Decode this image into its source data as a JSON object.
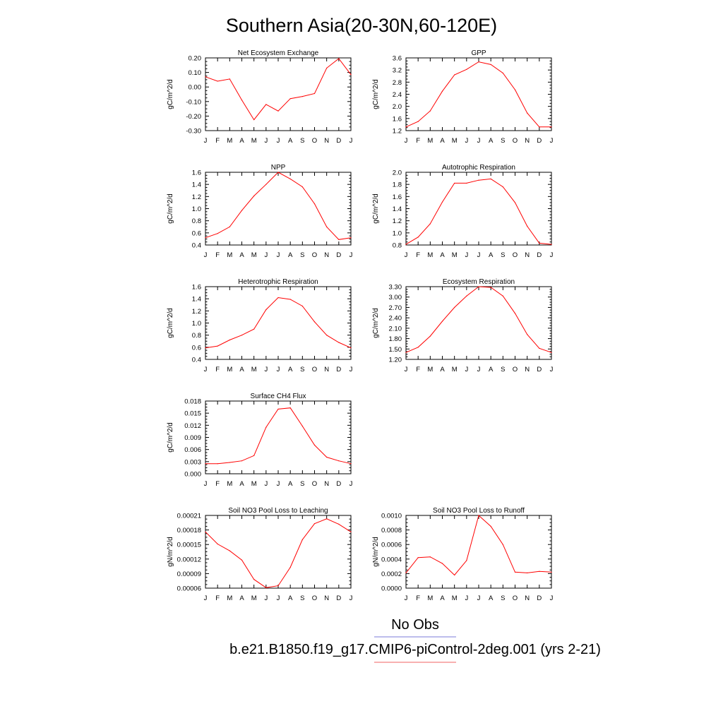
{
  "title": "Southern Asia(20-30N,60-120E)",
  "legend": {
    "entries": [
      {
        "label": "No Obs",
        "color": "#7b7bd8"
      },
      {
        "label": "b.e21.B1850.f19_g17.CMIP6-piControl-2deg.001 (yrs 2-21)",
        "color": "#f26060"
      }
    ]
  },
  "colors": {
    "series": "#ff0000",
    "axis": "#000000"
  },
  "chart_data": [
    {
      "type": "line",
      "title": "Net Ecosystem Exchange",
      "ylabel": "gC/m^2/d",
      "categories": [
        "J",
        "F",
        "M",
        "A",
        "M",
        "J",
        "J",
        "A",
        "S",
        "O",
        "N",
        "D",
        "J"
      ],
      "ylim": [
        -0.3,
        0.2
      ],
      "yticks": [
        "-0.30",
        "-0.20",
        "-0.10",
        "0.00",
        "0.10",
        "0.20"
      ],
      "series": [
        {
          "values": [
            0.07,
            0.04,
            0.055,
            -0.09,
            -0.225,
            -0.12,
            -0.165,
            -0.08,
            -0.065,
            -0.045,
            0.13,
            0.195,
            0.085
          ]
        }
      ]
    },
    {
      "type": "line",
      "title": "GPP",
      "ylabel": "gC/m^2/d",
      "categories": [
        "J",
        "F",
        "M",
        "A",
        "M",
        "J",
        "J",
        "A",
        "S",
        "O",
        "N",
        "D",
        "J"
      ],
      "ylim": [
        1.2,
        3.6
      ],
      "yticks": [
        "1.2",
        "1.6",
        "2.0",
        "2.4",
        "2.8",
        "3.2",
        "3.6"
      ],
      "series": [
        {
          "values": [
            1.32,
            1.5,
            1.85,
            2.5,
            3.04,
            3.22,
            3.47,
            3.38,
            3.1,
            2.55,
            1.78,
            1.32,
            1.32
          ]
        }
      ]
    },
    {
      "type": "line",
      "title": "NPP",
      "ylabel": "gC/m^2/d",
      "categories": [
        "J",
        "F",
        "M",
        "A",
        "M",
        "J",
        "J",
        "A",
        "S",
        "O",
        "N",
        "D",
        "J"
      ],
      "ylim": [
        0.4,
        1.6
      ],
      "yticks": [
        "0.4",
        "0.6",
        "0.8",
        "1.0",
        "1.2",
        "1.4",
        "1.6"
      ],
      "series": [
        {
          "values": [
            0.52,
            0.59,
            0.7,
            0.97,
            1.21,
            1.4,
            1.6,
            1.49,
            1.36,
            1.08,
            0.7,
            0.49,
            0.52
          ]
        }
      ]
    },
    {
      "type": "line",
      "title": "Autotrophic Respiration",
      "ylabel": "gC/m^2/d",
      "categories": [
        "J",
        "F",
        "M",
        "A",
        "M",
        "J",
        "J",
        "A",
        "S",
        "O",
        "N",
        "D",
        "J"
      ],
      "ylim": [
        0.8,
        2.0
      ],
      "yticks": [
        "0.8",
        "1.0",
        "1.2",
        "1.4",
        "1.6",
        "1.8",
        "2.0"
      ],
      "series": [
        {
          "values": [
            0.81,
            0.93,
            1.15,
            1.51,
            1.82,
            1.82,
            1.87,
            1.89,
            1.76,
            1.5,
            1.11,
            0.83,
            0.81
          ]
        }
      ]
    },
    {
      "type": "line",
      "title": "Heterotrophic Respiration",
      "ylabel": "gC/m^2/d",
      "categories": [
        "J",
        "F",
        "M",
        "A",
        "M",
        "J",
        "J",
        "A",
        "S",
        "O",
        "N",
        "D",
        "J"
      ],
      "ylim": [
        0.4,
        1.6
      ],
      "yticks": [
        "0.4",
        "0.6",
        "0.8",
        "1.0",
        "1.2",
        "1.4",
        "1.6"
      ],
      "series": [
        {
          "values": [
            0.59,
            0.62,
            0.72,
            0.8,
            0.9,
            1.22,
            1.42,
            1.39,
            1.28,
            1.02,
            0.8,
            0.68,
            0.59
          ]
        }
      ]
    },
    {
      "type": "line",
      "title": "Ecosystem Respiration",
      "ylabel": "gC/m^2/d",
      "categories": [
        "J",
        "F",
        "M",
        "A",
        "M",
        "J",
        "J",
        "A",
        "S",
        "O",
        "N",
        "D",
        "J"
      ],
      "ylim": [
        1.2,
        3.3
      ],
      "yticks": [
        "1.20",
        "1.50",
        "1.80",
        "2.10",
        "2.40",
        "2.70",
        "3.00",
        "3.30"
      ],
      "series": [
        {
          "values": [
            1.4,
            1.55,
            1.87,
            2.3,
            2.7,
            3.03,
            3.3,
            3.28,
            3.03,
            2.53,
            1.92,
            1.52,
            1.4
          ]
        }
      ]
    },
    {
      "type": "line",
      "title": "Surface CH4 Flux",
      "ylabel": "gC/m^2/d",
      "categories": [
        "J",
        "F",
        "M",
        "A",
        "M",
        "J",
        "J",
        "A",
        "S",
        "O",
        "N",
        "D",
        "J"
      ],
      "ylim": [
        0.0,
        0.018
      ],
      "yticks": [
        "0.000",
        "0.003",
        "0.006",
        "0.009",
        "0.012",
        "0.015",
        "0.018"
      ],
      "series": [
        {
          "values": [
            0.0025,
            0.0025,
            0.0028,
            0.0032,
            0.0045,
            0.0115,
            0.016,
            0.0163,
            0.0118,
            0.0071,
            0.0041,
            0.0032,
            0.0025
          ]
        }
      ]
    },
    {
      "type": "line",
      "title": "Soil NO3 Pool Loss to Leaching",
      "ylabel": "gN/m^2/d",
      "categories": [
        "J",
        "F",
        "M",
        "A",
        "M",
        "J",
        "J",
        "A",
        "S",
        "O",
        "N",
        "D",
        "J"
      ],
      "ylim": [
        6e-05,
        0.00021
      ],
      "yticks": [
        "0.00006",
        "0.00009",
        "0.00012",
        "0.00015",
        "0.00018",
        "0.00021"
      ],
      "series": [
        {
          "values": [
            0.000176,
            0.000151,
            0.000137,
            0.000118,
            7.8e-05,
            6.1e-05,
            6.5e-05,
            0.000103,
            0.00016,
            0.000193,
            0.000203,
            0.000192,
            0.000176
          ]
        }
      ]
    },
    {
      "type": "line",
      "title": "Soil NO3 Pool Loss to Runoff",
      "ylabel": "gN/m^2/d",
      "categories": [
        "J",
        "F",
        "M",
        "A",
        "M",
        "J",
        "J",
        "A",
        "S",
        "O",
        "N",
        "D",
        "J"
      ],
      "ylim": [
        0.0,
        0.001
      ],
      "yticks": [
        "0.0000",
        "0.0002",
        "0.0004",
        "0.0006",
        "0.0008",
        "0.0010"
      ],
      "series": [
        {
          "values": [
            0.00021,
            0.00042,
            0.00043,
            0.00034,
            0.00018,
            0.00038,
            0.001,
            0.00085,
            0.0006,
            0.00022,
            0.00021,
            0.00023,
            0.00022
          ]
        }
      ]
    }
  ]
}
